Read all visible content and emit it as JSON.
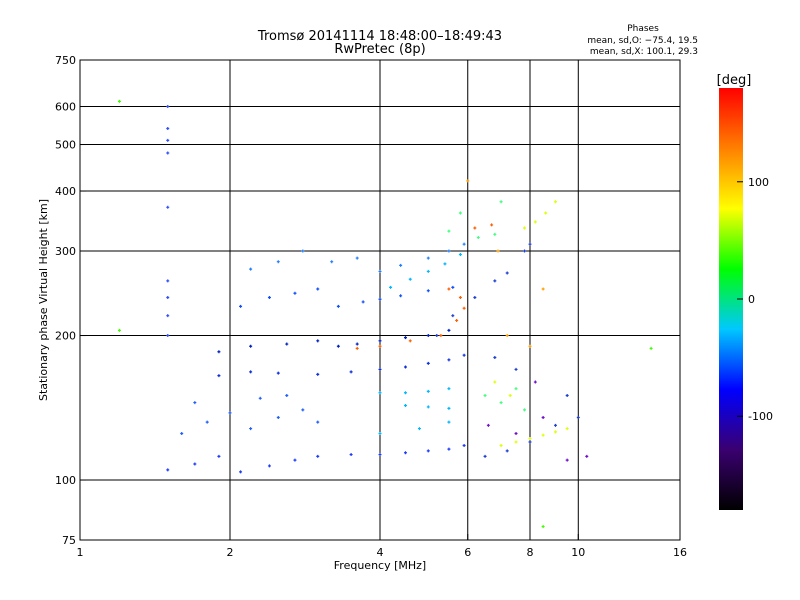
{
  "chart_data": {
    "type": "scatter",
    "title": "Tromsø 20141114  18:48:00–18:49:43",
    "subtitle": "RwPretec (8p)",
    "xlabel": "Frequency [MHz]",
    "ylabel": "Stationary phase Virtual Height [km]",
    "xscale": "log",
    "yscale": "log",
    "xlim": [
      1,
      16
    ],
    "ylim": [
      75,
      750
    ],
    "x_ticks": [
      1,
      2,
      4,
      6,
      8,
      10,
      16
    ],
    "x_grid": [
      2,
      4,
      6,
      8,
      10
    ],
    "y_ticks": [
      75,
      100,
      200,
      300,
      400,
      500,
      600,
      750
    ],
    "y_grid": [
      100,
      200,
      300,
      400,
      500,
      600
    ],
    "grid": true,
    "legend_title": "Phases",
    "legend_lines": [
      "mean, sd,O: −75.4, 19.5",
      "mean, sd,X: 100.1, 29.3"
    ],
    "colorbar": {
      "label": "[deg]",
      "ticks": [
        100,
        0,
        -100
      ],
      "range": [
        -180,
        180
      ],
      "colormap": [
        "#000000",
        "#3a0070",
        "#0000ff",
        "#00c8ff",
        "#00ff00",
        "#ffff00",
        "#ff8000",
        "#ff0000"
      ]
    },
    "series": [
      {
        "color": "#1e3cff",
        "points": [
          [
            1.5,
            105
          ],
          [
            1.7,
            108
          ],
          [
            1.9,
            112
          ],
          [
            2.1,
            104
          ],
          [
            2.4,
            107
          ],
          [
            2.7,
            110
          ],
          [
            3.0,
            112
          ],
          [
            3.5,
            113
          ],
          [
            4.0,
            113
          ],
          [
            4.5,
            114
          ],
          [
            5.0,
            115
          ],
          [
            5.5,
            116
          ],
          [
            5.9,
            118
          ]
        ]
      },
      {
        "color": "#2060ff",
        "points": [
          [
            1.6,
            125
          ],
          [
            1.8,
            132
          ],
          [
            2.0,
            138
          ],
          [
            2.2,
            128
          ],
          [
            2.5,
            135
          ],
          [
            2.8,
            140
          ],
          [
            3.0,
            132
          ],
          [
            1.7,
            145
          ],
          [
            2.3,
            148
          ],
          [
            2.6,
            150
          ]
        ]
      },
      {
        "color": "#1030e0",
        "points": [
          [
            1.9,
            165
          ],
          [
            2.2,
            168
          ],
          [
            2.5,
            167
          ],
          [
            3.0,
            166
          ],
          [
            3.5,
            168
          ],
          [
            4.0,
            170
          ],
          [
            4.5,
            172
          ],
          [
            5.0,
            175
          ],
          [
            5.5,
            178
          ],
          [
            5.9,
            182
          ]
        ]
      },
      {
        "color": "#0020c0",
        "points": [
          [
            1.9,
            185
          ],
          [
            2.2,
            190
          ],
          [
            2.6,
            192
          ],
          [
            3.0,
            195
          ],
          [
            3.3,
            190
          ],
          [
            3.6,
            192
          ],
          [
            4.0,
            195
          ],
          [
            4.5,
            198
          ],
          [
            5.0,
            200
          ],
          [
            5.5,
            205
          ]
        ]
      },
      {
        "color": "#1050ff",
        "points": [
          [
            2.1,
            230
          ],
          [
            2.4,
            240
          ],
          [
            2.7,
            245
          ],
          [
            3.0,
            250
          ],
          [
            3.3,
            230
          ],
          [
            3.7,
            235
          ],
          [
            4.0,
            238
          ],
          [
            4.4,
            242
          ],
          [
            5.0,
            248
          ],
          [
            5.6,
            252
          ]
        ]
      },
      {
        "color": "#2080ff",
        "points": [
          [
            2.2,
            275
          ],
          [
            2.5,
            285
          ],
          [
            2.8,
            300
          ],
          [
            3.2,
            285
          ],
          [
            3.6,
            290
          ],
          [
            4.0,
            272
          ],
          [
            4.4,
            280
          ],
          [
            5.0,
            290
          ],
          [
            5.5,
            300
          ],
          [
            5.9,
            310
          ]
        ]
      },
      {
        "color": "#00b8ff",
        "points": [
          [
            4.2,
            252
          ],
          [
            4.6,
            262
          ],
          [
            5.0,
            272
          ],
          [
            5.4,
            282
          ],
          [
            5.8,
            295
          ],
          [
            4.0,
            152
          ],
          [
            4.5,
            152
          ],
          [
            5.0,
            153
          ],
          [
            5.5,
            155
          ],
          [
            4.5,
            143
          ],
          [
            5.0,
            142
          ],
          [
            5.5,
            141
          ],
          [
            4.0,
            125
          ],
          [
            4.8,
            128
          ],
          [
            5.5,
            132
          ]
        ]
      },
      {
        "color": "#ff6000",
        "points": [
          [
            3.6,
            188
          ],
          [
            4.0,
            190
          ],
          [
            4.6,
            195
          ],
          [
            5.3,
            200
          ],
          [
            5.7,
            215
          ],
          [
            5.8,
            240
          ],
          [
            5.9,
            228
          ],
          [
            5.5,
            250
          ],
          [
            6.2,
            335
          ],
          [
            6.7,
            340
          ]
        ]
      },
      {
        "color": "#40ff80",
        "points": [
          [
            5.5,
            330
          ],
          [
            5.8,
            360
          ],
          [
            6.3,
            320
          ],
          [
            6.8,
            325
          ],
          [
            7.0,
            380
          ],
          [
            6.5,
            150
          ],
          [
            7.0,
            145
          ],
          [
            7.5,
            155
          ],
          [
            7.8,
            140
          ]
        ]
      },
      {
        "color": "#e0ff00",
        "points": [
          [
            7.0,
            118
          ],
          [
            7.5,
            120
          ],
          [
            8.0,
            122
          ],
          [
            8.5,
            124
          ],
          [
            9.0,
            126
          ],
          [
            9.5,
            128
          ],
          [
            7.8,
            335
          ],
          [
            8.2,
            345
          ],
          [
            8.6,
            360
          ],
          [
            9.0,
            380
          ],
          [
            6.8,
            160
          ],
          [
            7.3,
            150
          ]
        ]
      },
      {
        "color": "#2040d0",
        "points": [
          [
            5.2,
            200
          ],
          [
            5.6,
            220
          ],
          [
            6.2,
            240
          ],
          [
            6.8,
            260
          ],
          [
            7.2,
            270
          ],
          [
            7.8,
            300
          ],
          [
            8.0,
            310
          ],
          [
            6.8,
            180
          ],
          [
            7.5,
            170
          ],
          [
            6.5,
            112
          ],
          [
            7.2,
            115
          ],
          [
            8.0,
            120
          ],
          [
            9.0,
            130
          ],
          [
            10.0,
            135
          ],
          [
            9.5,
            150
          ]
        ]
      },
      {
        "color": "#3050ff",
        "points": [
          [
            1.5,
            480
          ],
          [
            1.5,
            510
          ],
          [
            1.5,
            540
          ],
          [
            1.5,
            600
          ],
          [
            1.5,
            260
          ],
          [
            1.5,
            240
          ],
          [
            1.5,
            220
          ],
          [
            1.5,
            200
          ],
          [
            1.5,
            370
          ]
        ]
      },
      {
        "color": "#ffa000",
        "points": [
          [
            6.9,
            300
          ],
          [
            6.0,
            420
          ],
          [
            8.5,
            250
          ],
          [
            7.2,
            200
          ],
          [
            8.0,
            190
          ]
        ]
      },
      {
        "color": "#7010d0",
        "points": [
          [
            6.6,
            130
          ],
          [
            7.5,
            125
          ],
          [
            8.5,
            135
          ],
          [
            9.5,
            110
          ],
          [
            8.2,
            160
          ],
          [
            10.4,
            112
          ]
        ]
      },
      {
        "color": "#40ff00",
        "points": [
          [
            1.2,
            205
          ],
          [
            1.2,
            615
          ],
          [
            14.0,
            188
          ],
          [
            8.5,
            80
          ]
        ]
      }
    ]
  }
}
